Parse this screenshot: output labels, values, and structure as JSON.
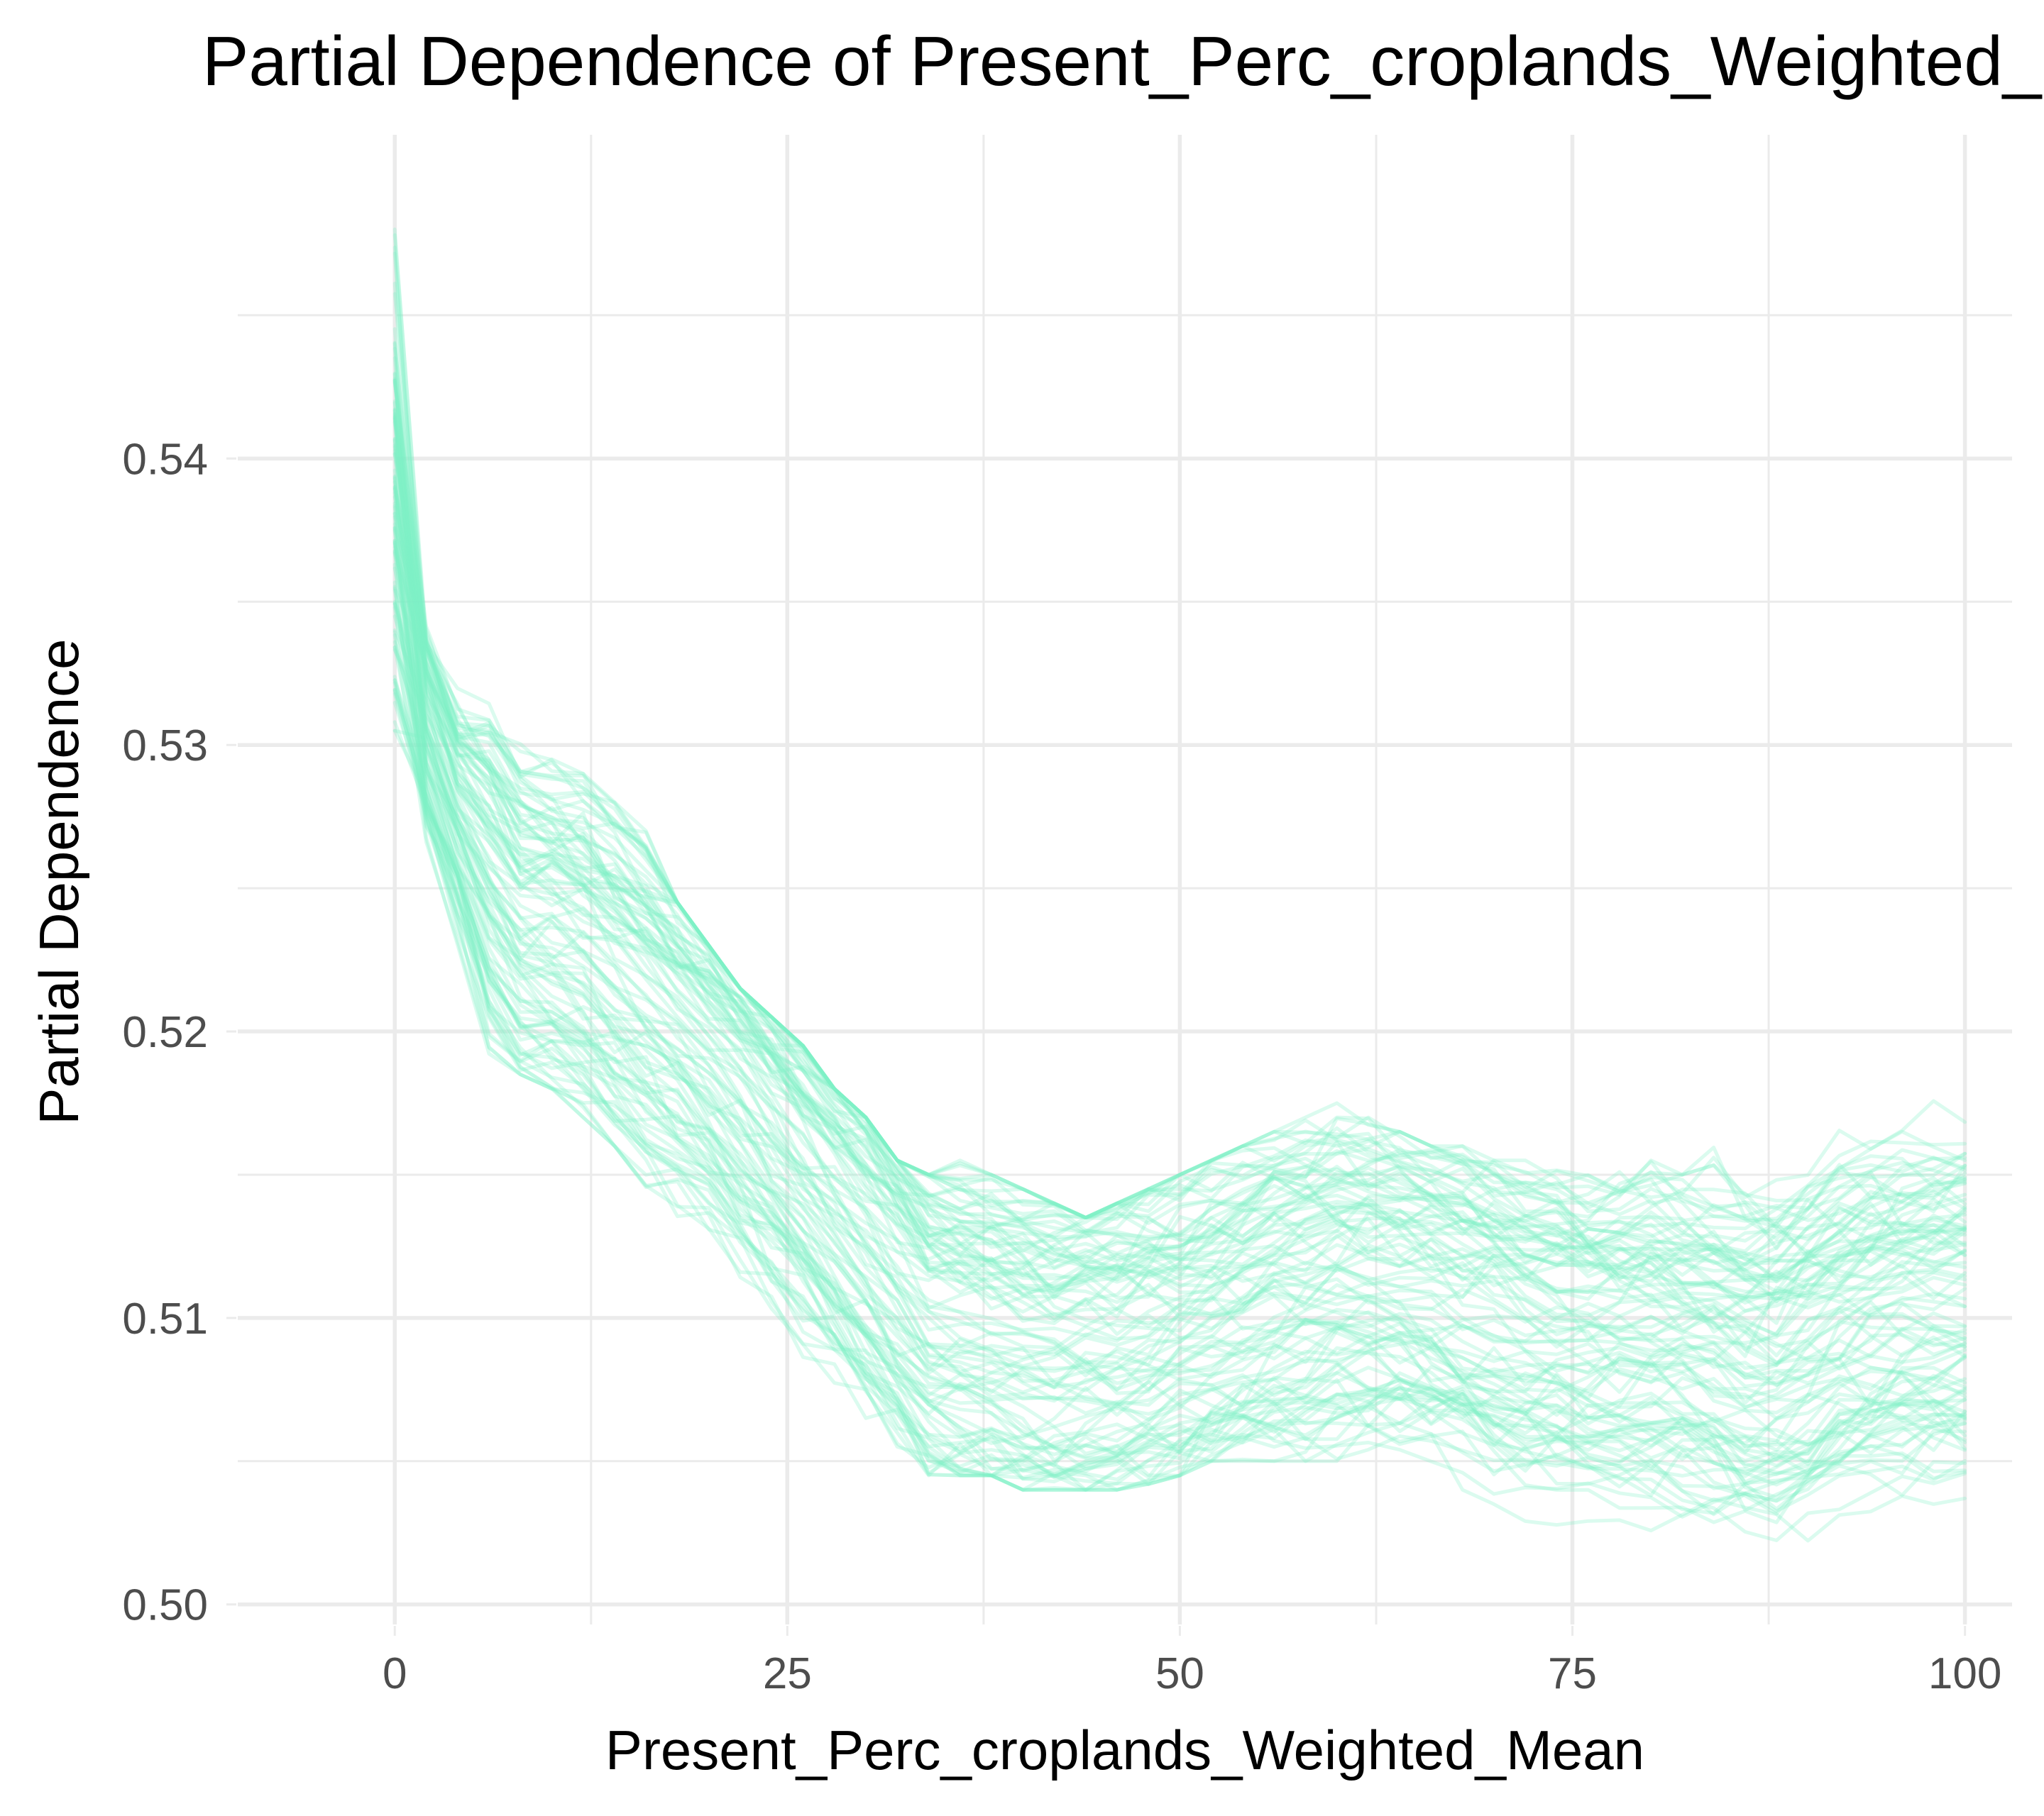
{
  "chart_data": {
    "type": "line",
    "title": "Partial Dependence of Present_Perc_croplands_Weighted_Mean",
    "xlabel": "Present_Perc_croplands_Weighted_Mean",
    "ylabel": "Partial Dependence",
    "xlim": [
      -10,
      103
    ],
    "ylim": [
      0.4993,
      0.5513
    ],
    "x_ticks": [
      0,
      25,
      50,
      75,
      100
    ],
    "x_tick_labels": [
      "0",
      "25",
      "50",
      "75",
      "100"
    ],
    "y_ticks": [
      0.5,
      0.51,
      0.52,
      0.53,
      0.54
    ],
    "y_tick_labels": [
      "0.50",
      "0.51",
      "0.52",
      "0.53",
      "0.54"
    ],
    "grid": true,
    "legend": "none",
    "line_color": "#7FEFC6",
    "line_opacity": 0.28,
    "series_count": 100,
    "x": [
      0,
      2,
      4,
      6,
      8,
      10,
      12,
      14,
      16,
      18,
      20,
      22,
      24,
      26,
      28,
      30,
      32,
      34,
      36,
      38,
      40,
      42,
      44,
      46,
      48,
      50,
      52,
      54,
      56,
      58,
      60,
      62,
      64,
      66,
      68,
      70,
      72,
      74,
      76,
      78,
      80,
      82,
      84,
      86,
      88,
      90,
      92,
      94,
      96,
      98,
      100
    ],
    "mean_curve": [
      0.5385,
      0.5305,
      0.5275,
      0.5255,
      0.5238,
      0.5235,
      0.523,
      0.522,
      0.521,
      0.52,
      0.519,
      0.5178,
      0.5165,
      0.5152,
      0.514,
      0.5128,
      0.5115,
      0.5102,
      0.5098,
      0.5095,
      0.5092,
      0.509,
      0.509,
      0.5091,
      0.5094,
      0.5097,
      0.5101,
      0.5105,
      0.5109,
      0.5111,
      0.5113,
      0.5113,
      0.5111,
      0.5108,
      0.5104,
      0.5101,
      0.5098,
      0.5096,
      0.5094,
      0.5094,
      0.5094,
      0.5093,
      0.509,
      0.5086,
      0.5085,
      0.509,
      0.5096,
      0.5099,
      0.5101,
      0.5102,
      0.5103
    ],
    "offset_range": [
      -0.006,
      0.006
    ],
    "min_envelope": [
      0.5305,
      0.5235,
      0.52,
      0.5185,
      0.5185,
      0.518,
      0.517,
      0.516,
      0.514,
      0.513,
      0.5115,
      0.51,
      0.509,
      0.5085,
      0.5075,
      0.5065,
      0.5055,
      0.5045,
      0.5045,
      0.5045,
      0.504,
      0.504,
      0.504,
      0.504,
      0.5042,
      0.5045,
      0.505,
      0.505,
      0.505,
      0.505,
      0.505,
      0.505,
      0.505,
      0.5045,
      0.504,
      0.5035,
      0.5025,
      0.502,
      0.502,
      0.502,
      0.502,
      0.502,
      0.502,
      0.502,
      0.502,
      0.5022,
      0.5025,
      0.503,
      0.5033,
      0.5035,
      0.5037
    ],
    "max_envelope": [
      0.548,
      0.5385,
      0.5375,
      0.5365,
      0.532,
      0.53,
      0.529,
      0.528,
      0.527,
      0.5245,
      0.523,
      0.5215,
      0.5205,
      0.5195,
      0.518,
      0.517,
      0.5155,
      0.515,
      0.5155,
      0.515,
      0.5145,
      0.514,
      0.5135,
      0.514,
      0.5145,
      0.515,
      0.5155,
      0.516,
      0.5165,
      0.517,
      0.5175,
      0.517,
      0.5165,
      0.516,
      0.516,
      0.5155,
      0.5155,
      0.5155,
      0.5155,
      0.5155,
      0.5155,
      0.515,
      0.516,
      0.516,
      0.5155,
      0.5165,
      0.517,
      0.5178,
      0.518,
      0.5182,
      0.5183
    ]
  }
}
